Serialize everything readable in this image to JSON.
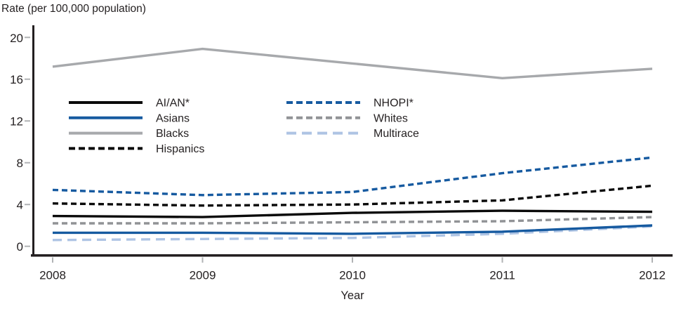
{
  "chart_data": {
    "type": "line",
    "title": "Rate (per 100,000 population)",
    "xlabel": "Year",
    "x": [
      2008,
      2009,
      2010,
      2011,
      2012
    ],
    "y_ticks": [
      0,
      4,
      8,
      12,
      16,
      20
    ],
    "ylim": [
      0,
      21
    ],
    "grid": false,
    "legend_position": "inside-top-left, two columns",
    "series": [
      {
        "name": "AI/AN*",
        "color": "#0a0a0a",
        "dash": "solid",
        "values": [
          2.9,
          2.8,
          3.2,
          3.4,
          3.3
        ]
      },
      {
        "name": "Asians",
        "color": "#165aa0",
        "dash": "solid",
        "values": [
          1.3,
          1.3,
          1.2,
          1.4,
          2.0
        ]
      },
      {
        "name": "Blacks",
        "color": "#a7a9ac",
        "dash": "solid",
        "values": [
          17.2,
          18.9,
          17.5,
          16.1,
          17.0
        ]
      },
      {
        "name": "Hispanics",
        "color": "#0a0a0a",
        "dash": "dash",
        "values": [
          4.1,
          3.9,
          4.0,
          4.4,
          5.8
        ]
      },
      {
        "name": "NHOPI*",
        "color": "#165aa0",
        "dash": "dash",
        "values": [
          5.4,
          4.9,
          5.2,
          7.0,
          8.5
        ]
      },
      {
        "name": "Whites",
        "color": "#919396",
        "dash": "dash",
        "values": [
          2.2,
          2.2,
          2.3,
          2.4,
          2.8
        ]
      },
      {
        "name": "Multirace",
        "color": "#aec4e4",
        "dash": "longdash",
        "values": [
          0.6,
          0.7,
          0.8,
          1.2,
          1.9
        ]
      }
    ],
    "legend": {
      "left_column": [
        "AI/AN*",
        "Asians",
        "Blacks",
        "Hispanics"
      ],
      "right_column": [
        "NHOPI*",
        "Whites",
        "Multirace"
      ]
    }
  },
  "colors": {
    "axis": "#231f20",
    "tick": "#b1b3b5",
    "text": "#231f20"
  }
}
